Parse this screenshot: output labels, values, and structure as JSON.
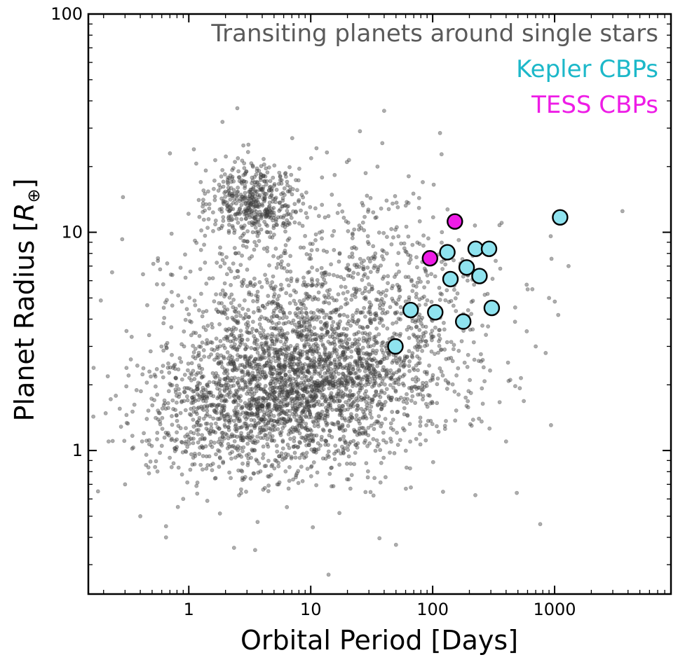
{
  "chart_data": {
    "type": "scatter",
    "title": "",
    "xlabel": "Orbital Period [Days]",
    "ylabel": "Planet Radius [R⊕]",
    "xscale": "log",
    "yscale": "log",
    "xlim": [
      0.15,
      9000
    ],
    "ylim": [
      0.22,
      100
    ],
    "x_ticks": [
      1,
      10,
      100,
      1000
    ],
    "x_tick_labels": [
      "1",
      "10",
      "100",
      "1000"
    ],
    "y_ticks": [
      1,
      10,
      100
    ],
    "y_tick_labels": [
      "1",
      "10",
      "100"
    ],
    "legend_position": "top-right",
    "series": [
      {
        "name": "Transiting planets around single stars",
        "color": "#555555",
        "marker": "small-gray-dot",
        "clusters": [
          {
            "center": [
              12,
              2.5
            ],
            "spread": [
              0.55,
              0.18
            ],
            "count": 1300
          },
          {
            "center": [
              5,
              1.5
            ],
            "spread": [
              0.5,
              0.14
            ],
            "count": 1000
          },
          {
            "center": [
              3.5,
              13.5
            ],
            "spread": [
              0.18,
              0.09
            ],
            "count": 450
          },
          {
            "center": [
              10,
              3.2
            ],
            "spread": [
              0.7,
              0.3
            ],
            "count": 800
          },
          {
            "center": [
              40,
              6
            ],
            "spread": [
              0.45,
              0.28
            ],
            "count": 300
          },
          {
            "center": [
              4,
              6
            ],
            "spread": [
              0.25,
              0.25
            ],
            "count": 120
          },
          {
            "center": [
              1.2,
              1.3
            ],
            "spread": [
              0.3,
              0.15
            ],
            "count": 150
          }
        ],
        "outliers": [
          [
            0.18,
            0.65
          ],
          [
            0.22,
            1.1
          ],
          [
            0.3,
            0.7
          ],
          [
            0.4,
            0.5
          ],
          [
            0.65,
            0.4
          ],
          [
            0.7,
            23
          ],
          [
            1.1,
            24
          ],
          [
            2.5,
            37
          ],
          [
            14,
            0.27
          ],
          [
            50,
            0.37
          ],
          [
            40,
            36
          ],
          [
            3600,
            12.5
          ],
          [
            1300,
            7
          ],
          [
            400,
            1.1
          ],
          [
            700,
            3
          ],
          [
            900,
            5
          ],
          [
            2.8,
            25
          ],
          [
            0.9,
            0.6
          ],
          [
            0.65,
            0.45
          ],
          [
            3.5,
            0.35
          ]
        ]
      },
      {
        "name": "Kepler CBPs",
        "color": "#1cb8c9",
        "marker_fill": "#8fe3ef",
        "points": [
          {
            "x": 49.5,
            "y": 3.0
          },
          {
            "x": 66,
            "y": 4.4
          },
          {
            "x": 105,
            "y": 4.3
          },
          {
            "x": 132,
            "y": 8.1
          },
          {
            "x": 140,
            "y": 6.1
          },
          {
            "x": 178,
            "y": 3.9
          },
          {
            "x": 190,
            "y": 6.9
          },
          {
            "x": 225,
            "y": 8.4
          },
          {
            "x": 242,
            "y": 6.3
          },
          {
            "x": 290,
            "y": 8.4
          },
          {
            "x": 305,
            "y": 4.5
          },
          {
            "x": 1110,
            "y": 11.7
          }
        ]
      },
      {
        "name": "TESS CBPs",
        "color": "#ee1ce6",
        "marker_fill": "#ee1ce6",
        "points": [
          {
            "x": 95,
            "y": 7.6
          },
          {
            "x": 152,
            "y": 11.2
          }
        ]
      }
    ]
  }
}
